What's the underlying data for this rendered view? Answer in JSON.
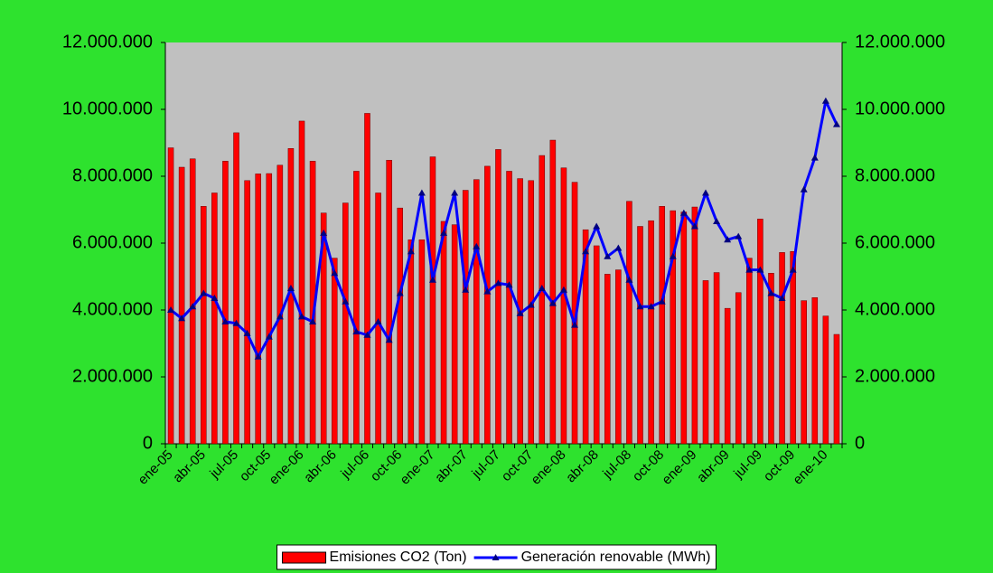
{
  "chart_data": {
    "type": "bar-line",
    "categories": [
      "ene-05",
      null,
      null,
      "abr-05",
      null,
      null,
      "jul-05",
      null,
      null,
      "oct-05",
      null,
      null,
      "ene-06",
      null,
      null,
      "abr-06",
      null,
      null,
      "jul-06",
      null,
      null,
      "oct-06",
      null,
      null,
      "ene-07",
      null,
      null,
      "abr-07",
      null,
      null,
      "jul-07",
      null,
      null,
      "oct-07",
      null,
      null,
      "ene-08",
      null,
      null,
      "abr-08",
      null,
      null,
      "jul-08",
      null,
      null,
      "oct-08",
      null,
      null,
      "ene-09",
      null,
      null,
      "abr-09",
      null,
      null,
      "jul-09",
      null,
      null,
      "oct-09",
      null,
      null,
      "ene-10",
      null
    ],
    "series": [
      {
        "name": "Emisiones CO2 (Ton)",
        "type": "bar",
        "color": "#ff0000",
        "values": [
          8850000,
          8270000,
          8520000,
          7100000,
          7500000,
          8450000,
          9300000,
          7870000,
          8070000,
          8080000,
          8330000,
          8830000,
          9650000,
          8450000,
          6900000,
          5550000,
          7200000,
          8150000,
          9880000,
          7500000,
          8480000,
          7050000,
          6100000,
          6100000,
          8580000,
          6650000,
          6550000,
          7580000,
          7900000,
          8300000,
          8800000,
          8150000,
          7930000,
          7870000,
          8620000,
          9080000,
          8250000,
          7820000,
          6400000,
          5920000,
          5070000,
          5200000,
          7250000,
          6500000,
          6670000,
          7100000,
          6970000,
          6930000,
          7080000,
          4880000,
          5120000,
          4050000,
          4520000,
          5550000,
          6720000,
          5100000,
          5720000,
          5750000,
          4280000,
          4370000,
          3820000,
          3270000
        ]
      },
      {
        "name": "Generación renovable (MWh)",
        "type": "line",
        "axis": "y2",
        "color": "#0000ff",
        "values": [
          4000000,
          3750000,
          4100000,
          4500000,
          4350000,
          3650000,
          3600000,
          3300000,
          2600000,
          3200000,
          3800000,
          4650000,
          3800000,
          3650000,
          6300000,
          5100000,
          4250000,
          3350000,
          3250000,
          3650000,
          3100000,
          4500000,
          5750000,
          7500000,
          4900000,
          6300000,
          7500000,
          4600000,
          5900000,
          4550000,
          4800000,
          4750000,
          3900000,
          4150000,
          4650000,
          4200000,
          4600000,
          3550000,
          5750000,
          6500000,
          5600000,
          5850000,
          4900000,
          4100000,
          4100000,
          4250000,
          5600000,
          6900000,
          6500000,
          7500000,
          6650000,
          6100000,
          6200000,
          5200000,
          5200000,
          4500000,
          4350000,
          5200000,
          7600000,
          8550000,
          10250000,
          9550000
        ]
      }
    ],
    "ylim": [
      0,
      12000000
    ],
    "yticks": [
      0,
      {
        "value": 2000000,
        "label": "2.000.000"
      },
      {
        "value": 4000000,
        "label": "4.000.000"
      },
      {
        "value": 6000000,
        "label": "6.000.000"
      },
      {
        "value": 8000000,
        "label": "8.000.000"
      },
      {
        "value": 10000000,
        "label": "10.000.000"
      },
      {
        "value": 12000000,
        "label": "12.000.000"
      }
    ],
    "y2lim": [
      0,
      12000000
    ],
    "y2ticks": [
      0,
      {
        "value": 2000000,
        "label": "2.000.000"
      },
      {
        "value": 4000000,
        "label": "4.000.000"
      },
      {
        "value": 6000000,
        "label": "6.000.000"
      },
      {
        "value": 8000000,
        "label": "8.000.000"
      },
      {
        "value": 10000000,
        "label": "10.000.000"
      },
      {
        "value": 12000000,
        "label": "12.000.000"
      }
    ],
    "legend": "bottom",
    "background": "#2ee22e",
    "plot_background": "#c0c0c0"
  }
}
